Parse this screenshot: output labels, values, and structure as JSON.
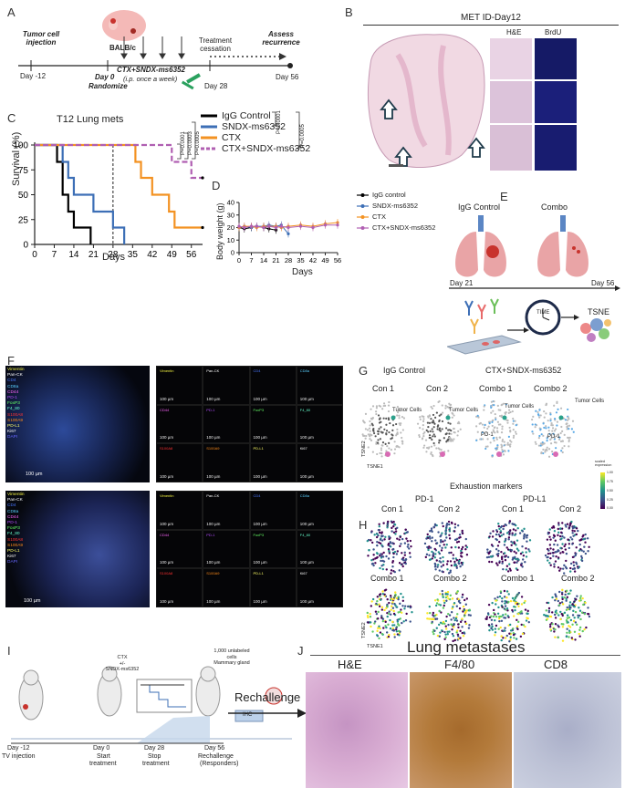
{
  "panel_letters": {
    "A": "A",
    "B": "B",
    "C": "C",
    "D": "D",
    "E": "E",
    "F": "F",
    "G": "G",
    "H": "H",
    "I": "I",
    "J": "J"
  },
  "panelA": {
    "tumor_injection": "Tumor cell\ninjection",
    "mouse": "BALB/c",
    "day_m12": "Day -12",
    "day0": "Day 0",
    "randomize": "Randomize",
    "treatment": "CTX+SNDX-ms6352",
    "treatment_sched": "(i.p. once a week)",
    "cessation": "Treatment\ncessation",
    "day28": "Day 28",
    "assess": "Assess\nrecurrence",
    "day56": "Day 56"
  },
  "panelB": {
    "title": "MET ID-Day12",
    "he": "H&E",
    "brdu": "BrdU"
  },
  "panelC": {
    "title": "T12 Lung mets",
    "ylabel": "Survival (%)",
    "xlabel": "Days",
    "legend": [
      "IgG Control",
      "SNDX-ms6352",
      "CTX",
      "CTX+SNDX-ms6352"
    ],
    "pvals": [
      "P=0.0005",
      "P=0.0001",
      "P=0.0005",
      "P=0.0003",
      "P=0.0001"
    ]
  },
  "panelD": {
    "ylabel": "Body weight (g)",
    "xlabel": "Days",
    "legend": [
      "IgG control",
      "SNDX-ms6352",
      "CTX",
      "CTX+SNDX-ms6352"
    ]
  },
  "panelE": {
    "igg": "IgG Control",
    "combo": "Combo",
    "day21": "Day 21",
    "day56": "Day 56",
    "time": "TIME",
    "tsne": "TSNE"
  },
  "panelF": {
    "markers": [
      "Vimentin",
      "Pan-CK",
      "CD4",
      "CD8a",
      "CD44",
      "PD-1",
      "FoxP3",
      "F4_80",
      "S100A8",
      "S100A9",
      "PD-L1",
      "Ki67",
      "DAPI"
    ],
    "marker_colors": [
      "#f5f542",
      "#ffffff",
      "#4a78ff",
      "#5ad1ff",
      "#ff66ff",
      "#b44dff",
      "#66ff66",
      "#66ffcc",
      "#ff3333",
      "#ff8c1a",
      "#ffff66",
      "#ffffff",
      "#6666ff"
    ],
    "top_tiles": [
      "Vimentin",
      "Pan-CK",
      "CD4",
      "CD8a",
      "CD44",
      "PD-1",
      "FoxP3",
      "F4_80",
      "S100A8",
      "S100A9",
      "PD-L1",
      "Ki67"
    ],
    "bot_tiles": [
      "Vimentin",
      "Pan-CK",
      "CD4",
      "CD8a",
      "CD44",
      "PD-1",
      "FoxP3",
      "F4_80",
      "S100A8",
      "S100A9",
      "PD-L1",
      "Ki67"
    ],
    "scale": "100 µm"
  },
  "panelG": {
    "igg": "IgG Control",
    "combo": "CTX+SNDX-ms6352",
    "con1": "Con 1",
    "con2": "Con 2",
    "combo1": "Combo 1",
    "combo2": "Combo 2",
    "tumor": "Tumor Cells",
    "pd1": "PD-1",
    "tsne1": "TSNE1",
    "tsne2": "TSNE2"
  },
  "panelH": {
    "title": "Exhaustion markers",
    "pd1": "PD-1",
    "pdl1": "PD-L1",
    "con1": "Con 1",
    "con2": "Con 2",
    "combo1": "Combo 1",
    "combo2": "Combo 2",
    "cbar_title": "scaled\nexpression",
    "cbar_ticks": [
      "1.00",
      "0.75",
      "0.50",
      "0.25",
      "0.00"
    ],
    "tsne1": "TSNE1",
    "tsne2": "TSNE2"
  },
  "panelI": {
    "day_m12": "Day -12",
    "tv": "TV injection",
    "day0": "Day 0",
    "start": "Start",
    "treatment": "treatment",
    "day28": "Day 28",
    "stop": "Stop",
    "stop_t": "treatment",
    "day56": "Day 56",
    "rech": "Rechallenge",
    "resp": "(Responders)",
    "ctx": "CTX\n+/-\nSNDX-ms6352",
    "cells": "1,000 unlabeled\ncells\nMammary gland",
    "ihc": "IHC",
    "arrow": "Rechallenge"
  },
  "panelJ": {
    "title": "Lung metastases",
    "he": "H&E",
    "f480": "F4/80",
    "cd8": "CD8"
  },
  "chart_data": [
    {
      "type": "line",
      "title": "T12 Lung mets",
      "xlabel": "Days",
      "ylabel": "Survival (%)",
      "xlim": [
        0,
        60
      ],
      "ylim": [
        0,
        100
      ],
      "xticks": [
        0,
        7,
        14,
        21,
        28,
        35,
        42,
        49,
        56
      ],
      "yticks": [
        0,
        25,
        50,
        75,
        100
      ],
      "step": true,
      "series": [
        {
          "name": "IgG Control",
          "color": "#000000",
          "x": [
            0,
            8,
            10,
            12,
            14,
            20
          ],
          "y": [
            100,
            83,
            50,
            33,
            17,
            0
          ]
        },
        {
          "name": "SNDX-ms6352",
          "color": "#3d6fb6",
          "x": [
            0,
            10,
            12,
            14,
            21,
            28,
            32
          ],
          "y": [
            100,
            83,
            67,
            50,
            33,
            17,
            0
          ]
        },
        {
          "name": "CTX",
          "color": "#f39222",
          "x": [
            0,
            36,
            38,
            42,
            48,
            50,
            60
          ],
          "y": [
            100,
            83,
            67,
            50,
            33,
            17,
            17
          ]
        },
        {
          "name": "CTX+SNDX-ms6352",
          "color": "#b05fb2",
          "x": [
            0,
            49,
            56,
            60
          ],
          "y": [
            100,
            83,
            67,
            67
          ]
        }
      ],
      "marker_line_x": 28
    },
    {
      "type": "line",
      "xlabel": "Days",
      "ylabel": "Body weight (g)",
      "xlim": [
        0,
        56
      ],
      "ylim": [
        0,
        40
      ],
      "xticks": [
        0,
        7,
        14,
        21,
        28,
        35,
        42,
        49,
        56
      ],
      "yticks": [
        0,
        10,
        20,
        30,
        40
      ],
      "series": [
        {
          "name": "IgG control",
          "color": "#000000",
          "x": [
            0,
            3,
            7,
            10,
            14,
            17,
            21
          ],
          "y": [
            20,
            19,
            20,
            21,
            20,
            19,
            18
          ]
        },
        {
          "name": "SNDX-ms6352",
          "color": "#3d6fb6",
          "x": [
            0,
            3,
            7,
            10,
            14,
            17,
            21,
            24,
            28
          ],
          "y": [
            20,
            21,
            20,
            21,
            21,
            22,
            21,
            22,
            15
          ]
        },
        {
          "name": "CTX",
          "color": "#f39222",
          "x": [
            0,
            3,
            7,
            10,
            14,
            17,
            21,
            24,
            28,
            35,
            42,
            49,
            56
          ],
          "y": [
            20,
            21,
            21,
            20,
            21,
            21,
            21,
            20,
            21,
            22,
            21,
            23,
            24
          ]
        },
        {
          "name": "CTX+SNDX-ms6352",
          "color": "#b05fb2",
          "x": [
            0,
            3,
            7,
            10,
            14,
            17,
            21,
            24,
            28,
            35,
            42,
            49,
            56
          ],
          "y": [
            21,
            20,
            21,
            21,
            20,
            21,
            20,
            21,
            20,
            21,
            20,
            22,
            22
          ]
        }
      ]
    }
  ]
}
